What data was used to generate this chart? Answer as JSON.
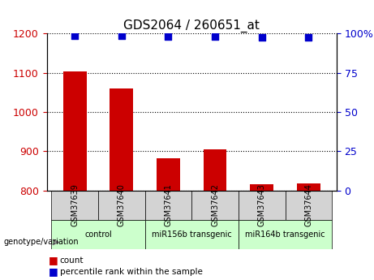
{
  "title": "GDS2064 / 260651_at",
  "samples": [
    "GSM37639",
    "GSM37640",
    "GSM37641",
    "GSM37642",
    "GSM37643",
    "GSM37644"
  ],
  "bar_values": [
    1104,
    1060,
    882,
    905,
    815,
    818
  ],
  "percentile_values": [
    98.5,
    98.5,
    98.2,
    98.2,
    97.5,
    97.8
  ],
  "bar_color": "#cc0000",
  "dot_color": "#0000cc",
  "ylim_left": [
    800,
    1200
  ],
  "ylim_right": [
    0,
    100
  ],
  "yticks_left": [
    800,
    900,
    1000,
    1100,
    1200
  ],
  "yticks_right": [
    0,
    25,
    50,
    75,
    100
  ],
  "ytick_labels_right": [
    "0",
    "25",
    "50",
    "75",
    "100%"
  ],
  "groups": [
    {
      "label": "control",
      "indices": [
        0,
        1
      ],
      "color": "#ccffcc"
    },
    {
      "label": "miR156b transgenic",
      "indices": [
        2,
        3
      ],
      "color": "#ccffcc"
    },
    {
      "label": "miR164b transgenic",
      "indices": [
        4,
        5
      ],
      "color": "#ccffcc"
    }
  ],
  "group_header": "genotype/variation",
  "legend_count_label": "count",
  "legend_percentile_label": "percentile rank within the sample",
  "grid_dotted": true,
  "background_color": "#ffffff",
  "left_yaxis_color": "#cc0000",
  "right_yaxis_color": "#0000cc"
}
